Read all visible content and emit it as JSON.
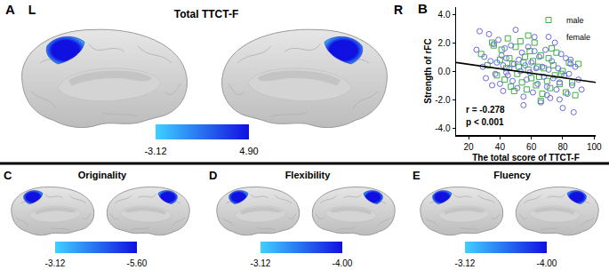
{
  "chart_data": {
    "type": "scatter",
    "panel": "B",
    "xlabel": "The total score of TTCT-F",
    "ylabel": "Strength of rFC",
    "xlim": [
      12,
      101
    ],
    "ylim": [
      -4.5,
      4.5
    ],
    "xticks": [
      20,
      40,
      60,
      80,
      100
    ],
    "yticks": [
      {
        "value": -4,
        "label": "-4.0"
      },
      {
        "value": -2,
        "label": "-2.0"
      },
      {
        "value": 0,
        "label": "0.0"
      },
      {
        "value": 2,
        "label": "2.0"
      },
      {
        "value": 4,
        "label": "4.0"
      }
    ],
    "grid": false,
    "legend": "top right",
    "series": [
      {
        "name": "male",
        "color": "#3cb043",
        "marker": "square-open",
        "x": [
          28,
          32,
          35,
          38,
          40,
          41,
          43,
          44,
          45,
          46,
          47,
          48,
          50,
          51,
          52,
          53,
          54,
          55,
          56,
          57,
          58,
          59,
          60,
          61,
          62,
          63,
          64,
          65,
          66,
          67,
          68,
          70,
          71,
          72,
          74,
          75,
          76,
          78,
          80,
          82,
          84,
          86,
          88,
          90,
          36,
          49,
          58,
          66,
          73,
          79
        ],
        "values": [
          1.2,
          0.4,
          2.0,
          -0.3,
          0.8,
          1.5,
          -0.6,
          0.2,
          2.3,
          0.9,
          -1.1,
          0.5,
          1.7,
          -0.2,
          0.3,
          2.1,
          -0.8,
          0.6,
          1.0,
          -1.3,
          0.1,
          1.4,
          -0.5,
          0.7,
          2.0,
          -1.0,
          0.3,
          -0.4,
          1.1,
          -1.6,
          0.2,
          -0.7,
          0.9,
          -1.2,
          0.4,
          -0.3,
          1.3,
          -0.9,
          0.0,
          -1.5,
          0.6,
          -0.8,
          -1.7,
          0.5,
          1.8,
          -1.4,
          2.5,
          -2.1,
          1.6,
          -0.2
        ]
      },
      {
        "name": "female",
        "color": "#6a6ae0",
        "marker": "circle-open",
        "x": [
          25,
          27,
          29,
          30,
          31,
          33,
          34,
          36,
          37,
          38,
          39,
          40,
          41,
          42,
          42,
          43,
          44,
          45,
          46,
          47,
          48,
          49,
          50,
          51,
          52,
          53,
          54,
          55,
          56,
          57,
          58,
          59,
          60,
          61,
          62,
          63,
          64,
          65,
          66,
          67,
          68,
          69,
          70,
          71,
          72,
          73,
          74,
          75,
          76,
          77,
          78,
          79,
          80,
          81,
          82,
          83,
          84,
          85,
          86,
          87,
          88,
          90,
          92,
          35,
          44,
          55,
          62,
          70,
          78,
          85
        ],
        "values": [
          1.5,
          2.8,
          0.3,
          1.0,
          -0.5,
          2.6,
          0.7,
          1.9,
          -0.2,
          0.6,
          2.2,
          -0.9,
          1.1,
          0.4,
          -1.4,
          1.6,
          0.9,
          -0.3,
          0.2,
          1.8,
          -0.7,
          0.5,
          2.9,
          -1.2,
          0.8,
          0.0,
          1.3,
          -1.8,
          0.4,
          -0.6,
          1.7,
          -0.1,
          0.6,
          -1.5,
          2.4,
          0.2,
          -0.9,
          1.0,
          -2.2,
          0.3,
          -0.4,
          1.5,
          -1.1,
          0.1,
          -1.9,
          0.7,
          -0.5,
          2.0,
          -1.3,
          0.2,
          -0.8,
          1.2,
          -2.6,
          -0.3,
          0.9,
          -1.6,
          -0.2,
          0.8,
          -1.0,
          -2.9,
          0.3,
          -0.6,
          -1.3,
          -1.0,
          -0.1,
          -2.4,
          1.4,
          -1.7,
          -2.0,
          0.5
        ]
      }
    ],
    "fit": {
      "x": [
        12,
        101
      ],
      "values": [
        0.6,
        -0.8
      ],
      "color": "#000000",
      "line_style": "solid"
    },
    "annotations": [
      "r = -0.278",
      "p < 0.001"
    ]
  },
  "brain_panels": [
    {
      "label": "A",
      "title": "Total TTCT-F",
      "hemispheres": [
        "L",
        "R"
      ],
      "colorbar": {
        "range": [
          -3.12,
          4.9
        ],
        "ticks": [
          -3.12,
          {
            "value": 4.9,
            "label": "4.90"
          }
        ],
        "colors": [
          "#40d0ff",
          "#1010e0"
        ]
      }
    },
    {
      "label": "C",
      "title": "Originality",
      "colorbar": {
        "range": [
          -3.12,
          -5.6
        ],
        "ticks": [
          -3.12,
          {
            "value": -5.6,
            "label": "-5.60"
          }
        ],
        "colors": [
          "#40d0ff",
          "#1010e0"
        ]
      }
    },
    {
      "label": "D",
      "title": "Flexibility",
      "colorbar": {
        "range": [
          -3.12,
          -4
        ],
        "ticks": [
          -3.12,
          {
            "value": -4,
            "label": "-4.00"
          }
        ],
        "colors": [
          "#40d0ff",
          "#1010e0"
        ]
      }
    },
    {
      "label": "E",
      "title": "Fluency",
      "colorbar": {
        "range": [
          -3.12,
          -4
        ],
        "ticks": [
          -3.12,
          {
            "value": -4,
            "label": "-4.00"
          }
        ],
        "colors": [
          "#40d0ff",
          "#1010e0"
        ]
      }
    }
  ]
}
